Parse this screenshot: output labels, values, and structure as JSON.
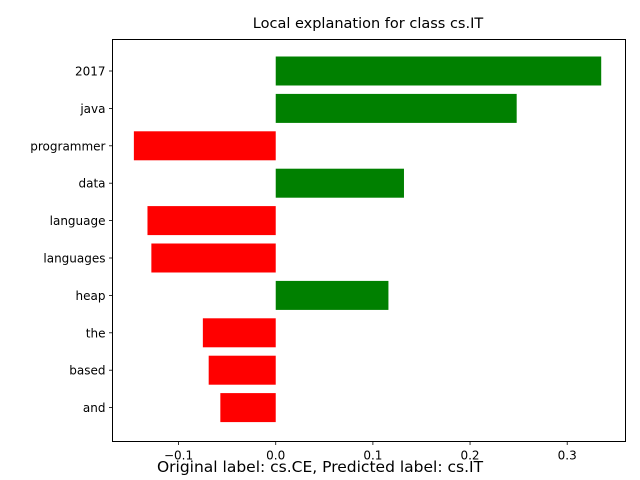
{
  "chart_data": {
    "type": "bar",
    "orientation": "horizontal",
    "title": "Local explanation for class cs.IT",
    "categories": [
      "2017",
      "java",
      "programmer",
      "data",
      "language",
      "languages",
      "heap",
      "the",
      "based",
      "and"
    ],
    "values": [
      0.335,
      0.248,
      -0.146,
      0.132,
      -0.132,
      -0.128,
      0.116,
      -0.075,
      -0.069,
      -0.057
    ],
    "x_ticks": [
      "−0.1",
      "0.0",
      "0.1",
      "0.2",
      "0.3"
    ],
    "x_tick_values": [
      -0.1,
      0.0,
      0.1,
      0.2,
      0.3
    ],
    "xlim": [
      -0.168,
      0.36
    ],
    "positive_color": "#008000",
    "negative_color": "#ff0000",
    "grid": false,
    "xlabel": "",
    "ylabel": ""
  },
  "caption": "Original label: cs.CE, Predicted label: cs.IT"
}
